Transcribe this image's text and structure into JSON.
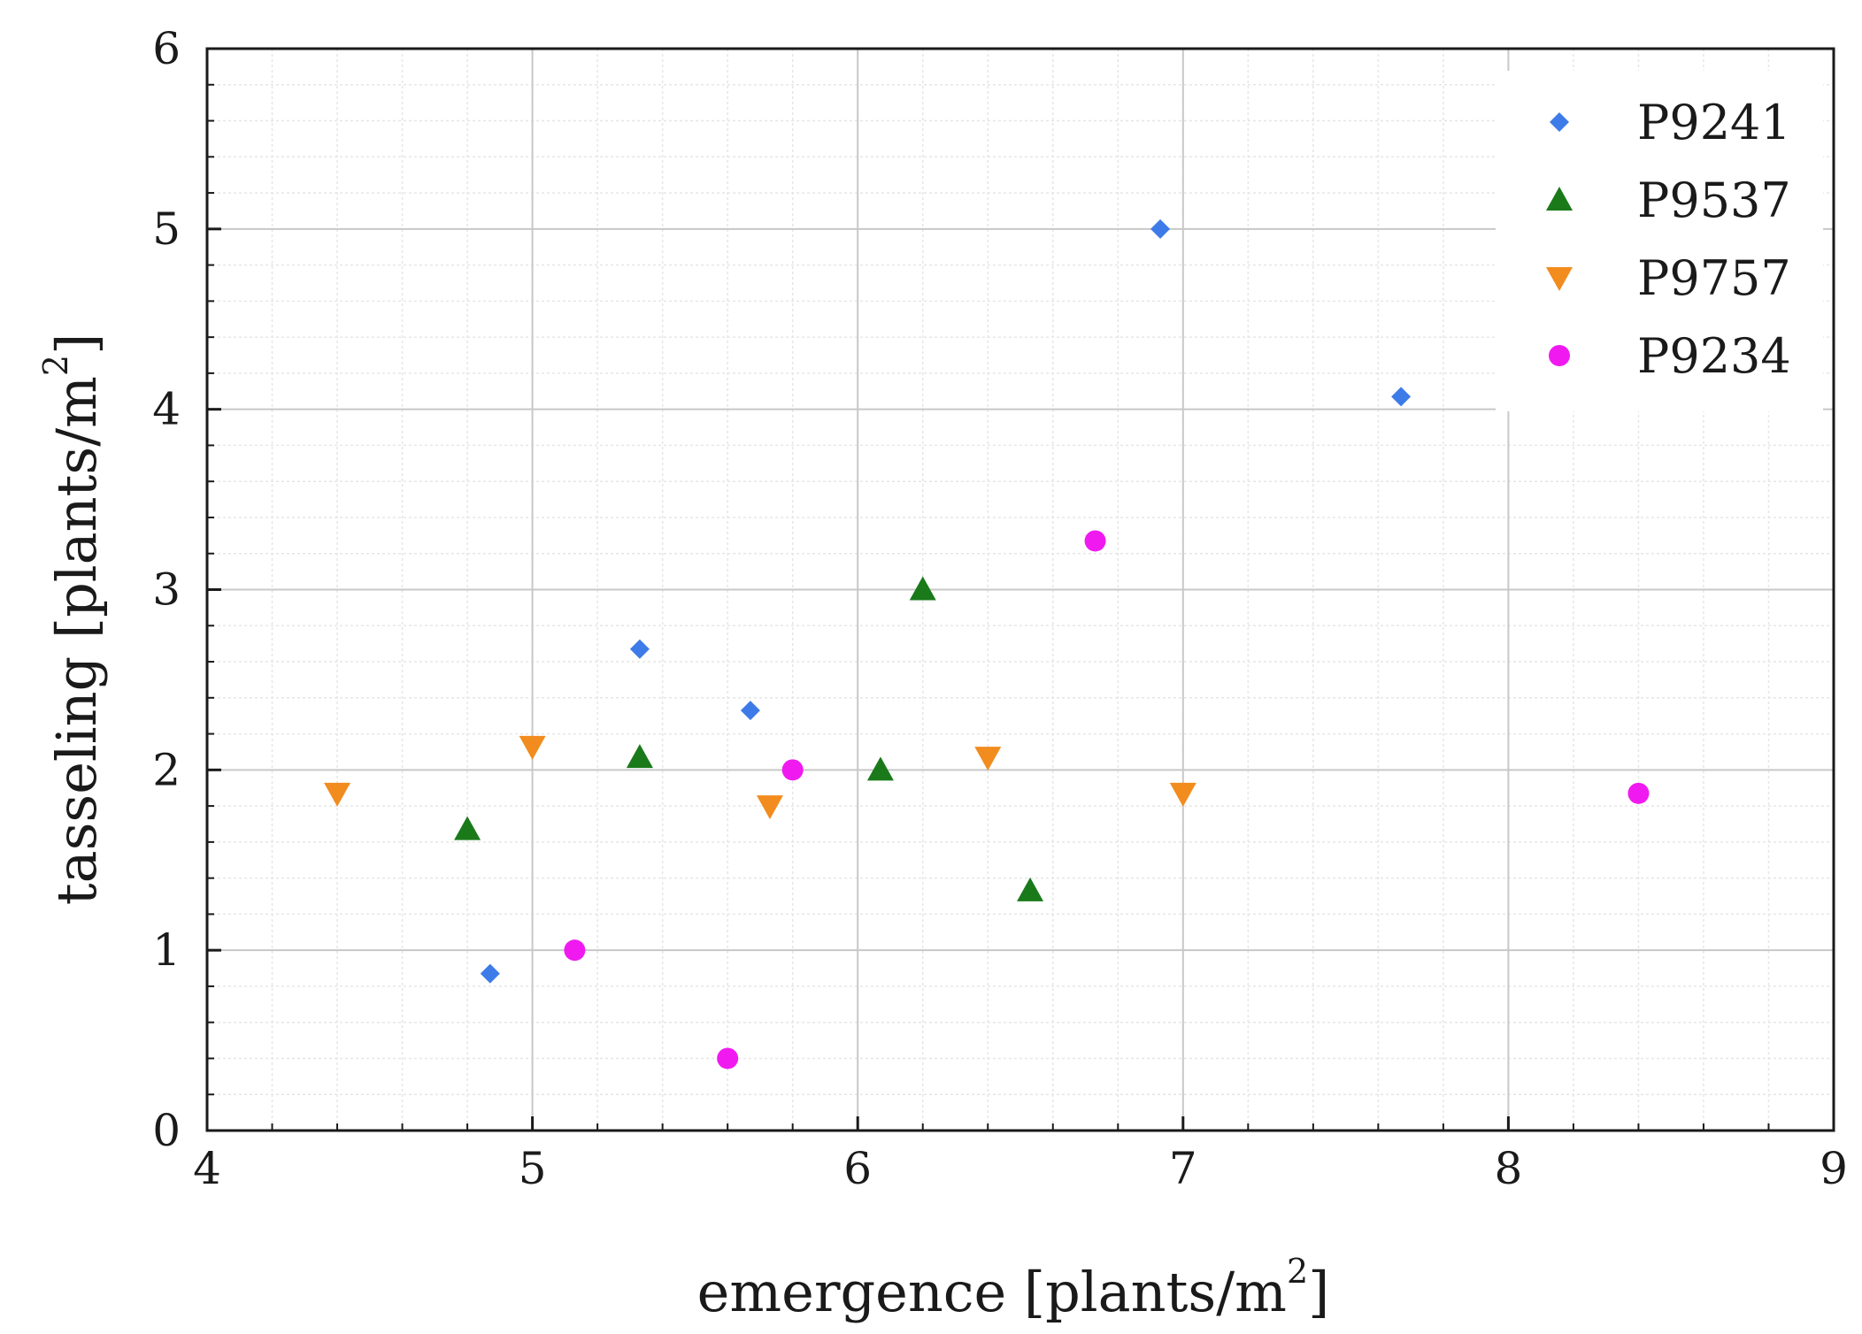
{
  "chart_data": {
    "type": "scatter",
    "title": "",
    "xlabel_main": "emergence [plants/m",
    "ylabel_main": "tasseling [plants/m",
    "unit_exponent": "2",
    "unit_close": "]",
    "xlim": [
      4,
      9
    ],
    "ylim": [
      0,
      6
    ],
    "xticks": [
      "4",
      "5",
      "6",
      "7",
      "8",
      "9"
    ],
    "yticks": [
      "0",
      "1",
      "2",
      "3",
      "4",
      "5",
      "6"
    ],
    "grid": true,
    "legend_position": "top-right",
    "series": [
      {
        "name": "P9241",
        "marker": "diamond",
        "color": "#3d7be8",
        "points": [
          [
            4.87,
            0.87
          ],
          [
            5.33,
            2.67
          ],
          [
            5.67,
            2.33
          ],
          [
            6.93,
            5.0
          ],
          [
            7.67,
            4.07
          ]
        ]
      },
      {
        "name": "P9537",
        "marker": "triangle-up",
        "color": "#1a7a1a",
        "points": [
          [
            4.8,
            1.67
          ],
          [
            5.33,
            2.07
          ],
          [
            6.07,
            2.0
          ],
          [
            6.2,
            3.0
          ],
          [
            6.53,
            1.33
          ]
        ]
      },
      {
        "name": "P9757",
        "marker": "triangle-down",
        "color": "#f28c1e",
        "points": [
          [
            4.4,
            1.87
          ],
          [
            5.0,
            2.13
          ],
          [
            5.73,
            1.8
          ],
          [
            6.4,
            2.07
          ],
          [
            7.0,
            1.87
          ]
        ]
      },
      {
        "name": "P9234",
        "marker": "circle",
        "color": "#f01af0",
        "points": [
          [
            5.13,
            1.0
          ],
          [
            5.6,
            0.4
          ],
          [
            5.8,
            2.0
          ],
          [
            6.73,
            3.27
          ],
          [
            8.4,
            1.87
          ]
        ]
      }
    ]
  }
}
